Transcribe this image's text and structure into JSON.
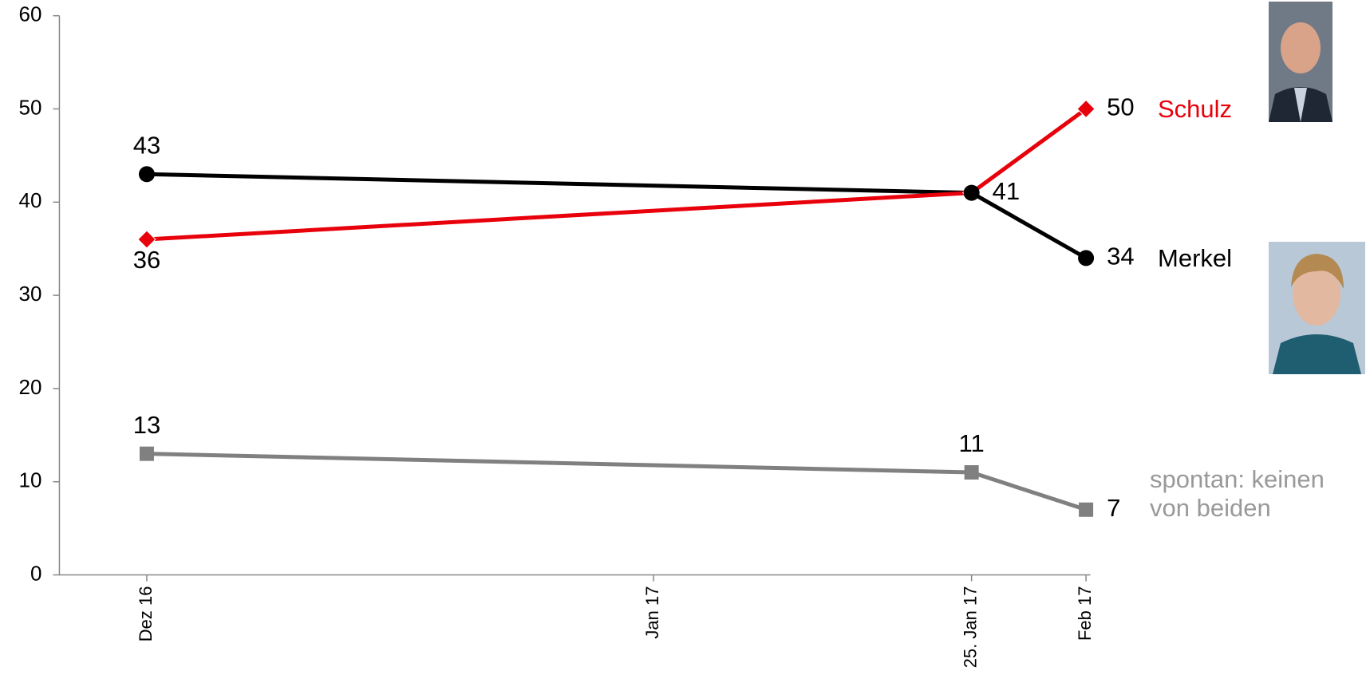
{
  "chart_data": {
    "type": "line",
    "categories": [
      "Dez 16",
      "Jan 17",
      "25. Jan 17",
      "Feb 17"
    ],
    "series": [
      {
        "name": "Schulz",
        "color": "#e8000b",
        "marker": "diamond",
        "values": [
          36,
          null,
          41,
          50
        ]
      },
      {
        "name": "Merkel",
        "color": "#000000",
        "marker": "circle",
        "values": [
          43,
          null,
          41,
          34
        ]
      },
      {
        "name": "spontan: keinen von beiden",
        "color": "#808080",
        "marker": "square",
        "values": [
          13,
          null,
          11,
          7
        ]
      }
    ],
    "ylim": [
      0,
      60
    ],
    "yticks": [
      0,
      10,
      20,
      30,
      40,
      50,
      60
    ],
    "grid": false
  }
}
